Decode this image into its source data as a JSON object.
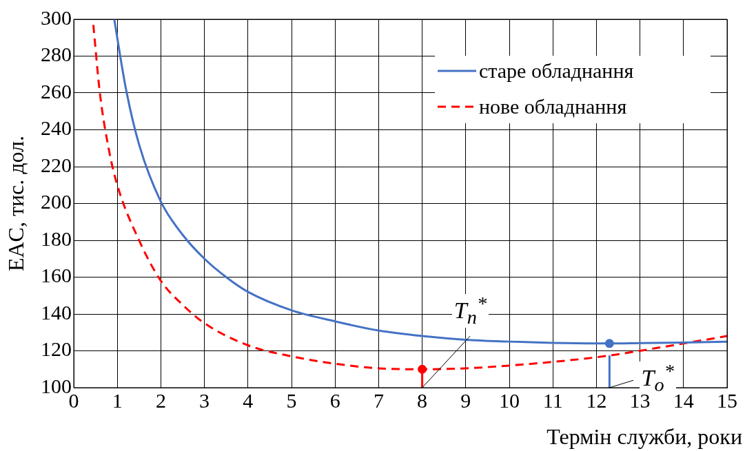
{
  "chart_data": {
    "type": "line",
    "xlabel": "Термін служби, роки",
    "ylabel": "EAC, тис. дол.",
    "xlim": [
      0,
      15
    ],
    "xticks": [
      0,
      1,
      2,
      3,
      4,
      5,
      6,
      7,
      8,
      9,
      10,
      11,
      12,
      13,
      14,
      15
    ],
    "ylim": [
      100,
      300
    ],
    "yticks": [
      100,
      120,
      140,
      160,
      180,
      200,
      220,
      240,
      260,
      280,
      300
    ],
    "grid": true,
    "legend": "top right",
    "marker": "none",
    "series": [
      {
        "name": "старе обладнання",
        "color": "#4472c4",
        "line_style": "solid",
        "x": [
          0.93,
          1.2,
          1.5,
          2,
          2.5,
          3,
          3.5,
          4,
          5,
          6,
          7,
          8,
          9,
          10,
          11,
          12,
          12.3,
          13,
          14,
          15
        ],
        "values": [
          300,
          262,
          232,
          201,
          183,
          170,
          160,
          152,
          142,
          136,
          131,
          128,
          126,
          125,
          124.3,
          124,
          124,
          124.2,
          124.5,
          125
        ]
      },
      {
        "name": "нове обладнання",
        "color": "#ff0000",
        "line_style": "dashed",
        "x": [
          0.45,
          0.6,
          0.8,
          1,
          1.5,
          2,
          2.5,
          3,
          4,
          5,
          6,
          7,
          8,
          9,
          10,
          11,
          12,
          13,
          14,
          15
        ],
        "values": [
          297,
          260,
          230,
          210,
          180,
          158,
          145,
          135,
          123,
          117,
          113,
          110.5,
          110,
          110.5,
          112,
          114,
          116.5,
          120,
          124,
          128
        ]
      },
      {
        "type": "line",
        "color": "#ff0000",
        "line_style": "solid",
        "x": [
          8,
          8
        ],
        "values": [
          100,
          110
        ]
      },
      {
        "type": "line",
        "color": "#4472c4",
        "line_style": "solid",
        "x": [
          12.3,
          12.3
        ],
        "values": [
          100,
          117.5
        ]
      },
      {
        "type": "scatter",
        "color": "#ff0000",
        "marker": "circle",
        "x": [
          8
        ],
        "values": [
          110
        ]
      },
      {
        "type": "scatter",
        "color": "#4472c4",
        "marker": "circle",
        "x": [
          12.3
        ],
        "values": [
          124
        ]
      }
    ],
    "annotations": [
      {
        "text": "T$_{n}$$^{*}$",
        "x": 8,
        "y": 100
      },
      {
        "text": "T$_{o}$$^{*}$",
        "x": 12.3,
        "y": 100
      }
    ]
  }
}
